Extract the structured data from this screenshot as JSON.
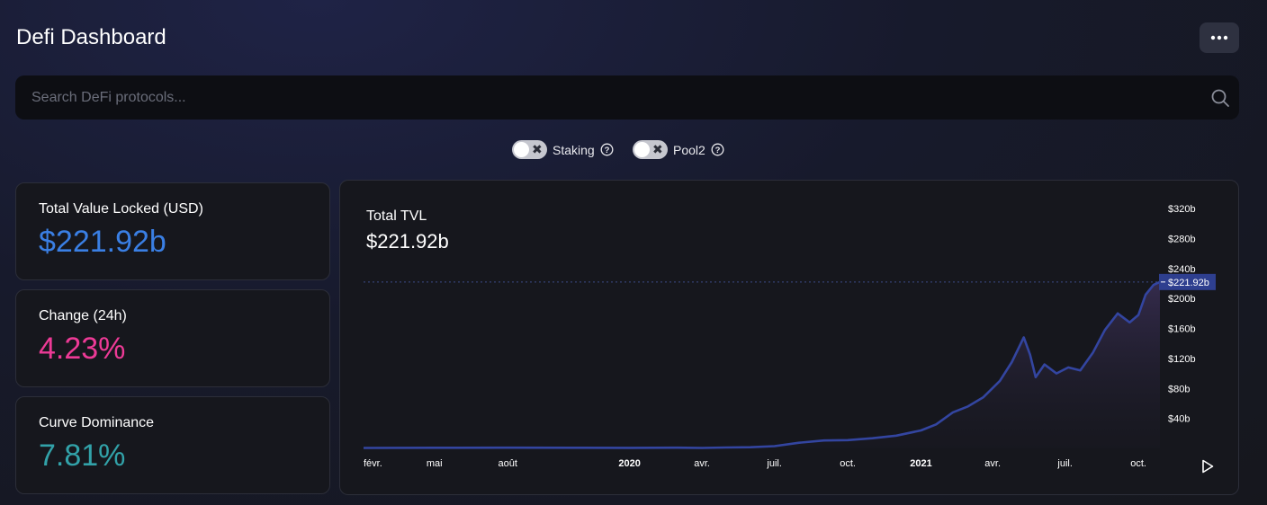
{
  "header": {
    "title": "Defi Dashboard",
    "menu_icon": "more-horizontal-icon"
  },
  "search": {
    "placeholder": "Search DeFi protocols...",
    "value": "",
    "icon": "search-icon"
  },
  "toggles": [
    {
      "label": "Staking",
      "on": false,
      "help_icon": "help-circle-icon"
    },
    {
      "label": "Pool2",
      "on": false,
      "help_icon": "help-circle-icon"
    }
  ],
  "stats": [
    {
      "label": "Total Value Locked (USD)",
      "value": "$221.92b",
      "color": "#3a7fe4"
    },
    {
      "label": "Change (24h)",
      "value": "4.23%",
      "color": "#ed3a96"
    },
    {
      "label": "Curve Dominance",
      "value": "7.81%",
      "color": "#32a2a9"
    }
  ],
  "chart": {
    "title": "Total TVL",
    "value": "$221.92b",
    "play_icon": "play-icon"
  },
  "chart_data": {
    "type": "area",
    "title": "Total TVL",
    "current_label": "$221.92b",
    "current_value": 221.92,
    "ylim": [
      0,
      320
    ],
    "yticks": [
      40,
      80,
      120,
      160,
      200,
      240,
      280,
      320
    ],
    "ytick_labels": [
      "$40b",
      "$80b",
      "$120b",
      "$160b",
      "$200b",
      "$240b",
      "$280b",
      "$320b"
    ],
    "x_range": [
      "2019-02-01",
      "2021-10-28"
    ],
    "xticks": [
      {
        "date": "2019-02-01",
        "label": "févr.",
        "bold": false
      },
      {
        "date": "2019-05-01",
        "label": "mai",
        "bold": false
      },
      {
        "date": "2019-08-01",
        "label": "août",
        "bold": false
      },
      {
        "date": "2020-01-01",
        "label": "2020",
        "bold": true
      },
      {
        "date": "2020-04-01",
        "label": "avr.",
        "bold": false
      },
      {
        "date": "2020-07-01",
        "label": "juil.",
        "bold": false
      },
      {
        "date": "2020-10-01",
        "label": "oct.",
        "bold": false
      },
      {
        "date": "2021-01-01",
        "label": "2021",
        "bold": true
      },
      {
        "date": "2021-04-01",
        "label": "avr.",
        "bold": false
      },
      {
        "date": "2021-07-01",
        "label": "juil.",
        "bold": false
      },
      {
        "date": "2021-10-01",
        "label": "oct.",
        "bold": false
      }
    ],
    "series": [
      {
        "color": "#3345a0",
        "points": [
          [
            "2019-02-01",
            0.6
          ],
          [
            "2019-05-01",
            0.8
          ],
          [
            "2019-08-01",
            0.9
          ],
          [
            "2019-11-01",
            0.8
          ],
          [
            "2020-01-01",
            0.7
          ],
          [
            "2020-03-01",
            0.9
          ],
          [
            "2020-04-01",
            0.6
          ],
          [
            "2020-05-01",
            1.2
          ],
          [
            "2020-06-01",
            1.6
          ],
          [
            "2020-07-01",
            3.0
          ],
          [
            "2020-08-01",
            7.5
          ],
          [
            "2020-09-01",
            10.5
          ],
          [
            "2020-10-01",
            11.0
          ],
          [
            "2020-11-01",
            13.5
          ],
          [
            "2020-12-01",
            17.0
          ],
          [
            "2021-01-01",
            24.0
          ],
          [
            "2021-01-20",
            32.0
          ],
          [
            "2021-02-10",
            48.0
          ],
          [
            "2021-03-01",
            56.0
          ],
          [
            "2021-03-20",
            68.0
          ],
          [
            "2021-04-10",
            90.0
          ],
          [
            "2021-04-25",
            115.0
          ],
          [
            "2021-05-10",
            148.0
          ],
          [
            "2021-05-18",
            125.0
          ],
          [
            "2021-05-25",
            95.0
          ],
          [
            "2021-06-05",
            112.0
          ],
          [
            "2021-06-20",
            100.0
          ],
          [
            "2021-07-05",
            108.0
          ],
          [
            "2021-07-20",
            104.0
          ],
          [
            "2021-08-05",
            128.0
          ],
          [
            "2021-08-20",
            158.0
          ],
          [
            "2021-09-05",
            180.0
          ],
          [
            "2021-09-20",
            168.0
          ],
          [
            "2021-10-01",
            178.0
          ],
          [
            "2021-10-10",
            205.0
          ],
          [
            "2021-10-20",
            218.0
          ],
          [
            "2021-10-28",
            221.92
          ]
        ]
      }
    ]
  }
}
